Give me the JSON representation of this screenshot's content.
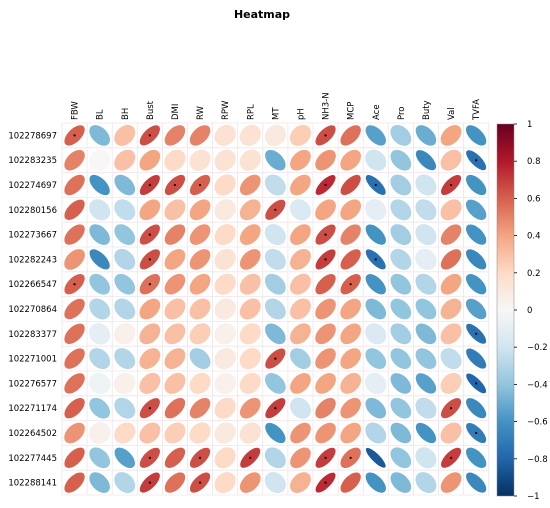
{
  "chart_data": {
    "type": "heatmap",
    "title": "Heatmap",
    "columns": [
      "FBW",
      "BL",
      "BH",
      "Bust",
      "DMI",
      "RW",
      "RPW",
      "RPL",
      "MT",
      "pH",
      "NH3-N",
      "MCP",
      "Ace",
      "Pro",
      "Buty",
      "Val",
      "TVFA"
    ],
    "rows": [
      "102278697",
      "102283235",
      "102274697",
      "102280156",
      "102273667",
      "102282243",
      "102266547",
      "102270864",
      "102283377",
      "102271001",
      "102276577",
      "102271174",
      "102264502",
      "102277445",
      "102288141"
    ],
    "values": [
      [
        0.6,
        -0.45,
        0.3,
        0.65,
        0.5,
        0.5,
        0.15,
        0.15,
        0.1,
        0.25,
        0.65,
        0.55,
        -0.55,
        -0.35,
        -0.5,
        0.4,
        -0.6
      ],
      [
        0.5,
        0.0,
        0.3,
        0.4,
        0.2,
        0.15,
        0.15,
        0.15,
        -0.5,
        0.4,
        0.45,
        0.4,
        -0.2,
        -0.4,
        -0.65,
        0.3,
        -0.75
      ],
      [
        0.55,
        -0.6,
        -0.45,
        0.7,
        0.65,
        0.6,
        0.2,
        0.45,
        -0.25,
        0.4,
        0.75,
        0.65,
        -0.75,
        -0.35,
        -0.2,
        0.7,
        -0.6
      ],
      [
        0.6,
        -0.2,
        -0.25,
        0.4,
        0.3,
        0.4,
        0.1,
        0.35,
        0.65,
        -0.15,
        0.4,
        0.4,
        -0.1,
        -0.3,
        -0.25,
        0.3,
        -0.55
      ],
      [
        0.55,
        -0.45,
        -0.4,
        0.65,
        0.5,
        0.45,
        0.2,
        0.4,
        -0.2,
        0.4,
        0.65,
        0.5,
        -0.6,
        -0.35,
        -0.2,
        0.5,
        -0.6
      ],
      [
        0.45,
        -0.65,
        -0.3,
        0.65,
        0.4,
        0.45,
        0.15,
        0.45,
        -0.25,
        0.35,
        0.7,
        0.6,
        -0.75,
        -0.3,
        -0.1,
        0.55,
        -0.65
      ],
      [
        0.6,
        -0.4,
        -0.4,
        0.55,
        0.45,
        0.4,
        0.2,
        0.3,
        -0.35,
        0.3,
        0.6,
        0.6,
        -0.6,
        -0.4,
        -0.3,
        0.4,
        -0.6
      ],
      [
        0.55,
        -0.3,
        -0.3,
        0.4,
        0.3,
        0.3,
        0.1,
        0.3,
        -0.3,
        0.3,
        0.45,
        0.4,
        -0.45,
        -0.4,
        -0.4,
        0.35,
        -0.55
      ],
      [
        0.55,
        -0.1,
        0.05,
        0.35,
        0.3,
        0.25,
        0.05,
        0.2,
        -0.45,
        0.35,
        0.45,
        0.4,
        -0.15,
        -0.35,
        -0.45,
        0.3,
        -0.75
      ],
      [
        0.55,
        -0.3,
        -0.3,
        0.35,
        0.35,
        -0.35,
        0.1,
        0.2,
        0.65,
        -0.35,
        0.45,
        0.4,
        -0.4,
        -0.4,
        -0.4,
        -0.25,
        -0.7
      ],
      [
        0.55,
        -0.05,
        0.05,
        0.3,
        0.3,
        0.2,
        0.05,
        0.2,
        -0.4,
        0.4,
        0.4,
        0.35,
        -0.1,
        -0.45,
        -0.55,
        0.25,
        -0.8
      ],
      [
        0.6,
        -0.4,
        -0.3,
        0.65,
        0.55,
        0.5,
        0.2,
        0.45,
        0.7,
        -0.2,
        0.5,
        0.45,
        -0.45,
        -0.4,
        -0.25,
        0.65,
        -0.65
      ],
      [
        0.45,
        0.05,
        0.2,
        0.3,
        0.25,
        0.2,
        0.1,
        0.15,
        -0.6,
        0.45,
        0.45,
        0.4,
        -0.3,
        -0.45,
        -0.6,
        0.3,
        -0.7
      ],
      [
        0.6,
        -0.4,
        -0.55,
        0.65,
        0.6,
        0.65,
        0.2,
        0.7,
        -0.3,
        0.45,
        0.7,
        0.55,
        -0.85,
        -0.4,
        -0.2,
        0.7,
        -0.6
      ],
      [
        0.6,
        -0.45,
        -0.3,
        0.7,
        0.55,
        0.65,
        0.2,
        0.45,
        -0.2,
        0.35,
        0.75,
        0.6,
        -0.6,
        -0.45,
        -0.3,
        0.45,
        -0.65
      ]
    ],
    "star_cells": [
      [
        0,
        0
      ],
      [
        0,
        3
      ],
      [
        0,
        10
      ],
      [
        1,
        16
      ],
      [
        2,
        3
      ],
      [
        2,
        4
      ],
      [
        2,
        5
      ],
      [
        2,
        10
      ],
      [
        2,
        12
      ],
      [
        2,
        15
      ],
      [
        3,
        8
      ],
      [
        4,
        3
      ],
      [
        4,
        10
      ],
      [
        5,
        3
      ],
      [
        5,
        10
      ],
      [
        5,
        12
      ],
      [
        6,
        0
      ],
      [
        6,
        3
      ],
      [
        6,
        11
      ],
      [
        8,
        16
      ],
      [
        9,
        8
      ],
      [
        10,
        16
      ],
      [
        11,
        3
      ],
      [
        11,
        8
      ],
      [
        11,
        15
      ],
      [
        12,
        16
      ],
      [
        13,
        3
      ],
      [
        13,
        5
      ],
      [
        13,
        7
      ],
      [
        13,
        10
      ],
      [
        13,
        11
      ],
      [
        13,
        15
      ],
      [
        14,
        3
      ],
      [
        14,
        5
      ],
      [
        14,
        10
      ]
    ],
    "colorbar": {
      "ticks": [
        1,
        0.8,
        0.6,
        0.4,
        0.2,
        0,
        -0.2,
        -0.4,
        -0.6,
        -0.8,
        -1
      ],
      "tick_labels": [
        "1",
        "0.8",
        "0.6",
        "0.4",
        "0.2",
        "0",
        "−0.2",
        "−0.4",
        "−0.6",
        "−0.8",
        "−1"
      ],
      "range": [
        -1,
        1
      ]
    },
    "colormap": [
      "#053061",
      "#2166ac",
      "#4393c3",
      "#92c5de",
      "#d1e5f0",
      "#f7f7f7",
      "#fddbc7",
      "#f4a582",
      "#d6604d",
      "#b2182b",
      "#67001f"
    ],
    "grid": true
  }
}
